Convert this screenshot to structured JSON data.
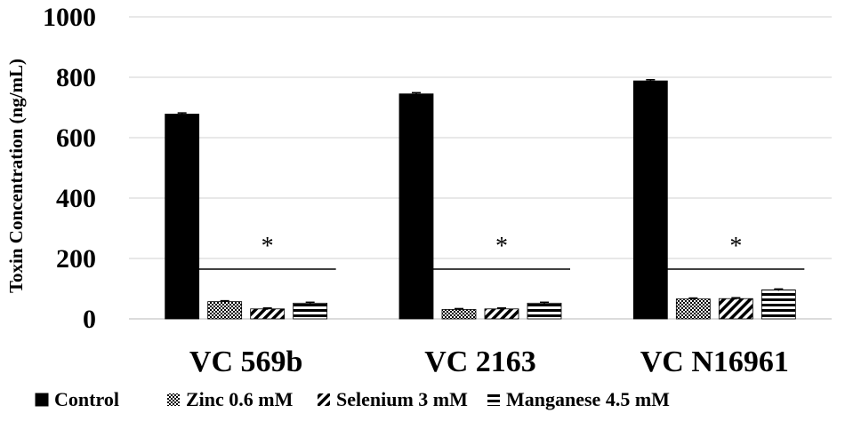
{
  "chart_data": {
    "type": "bar",
    "title": "",
    "ylabel": "Toxin Concentration (ng/mL)",
    "xlabel": "",
    "ylim": [
      0,
      1000
    ],
    "yticks": [
      "0",
      "200",
      "400",
      "600",
      "800",
      "1000"
    ],
    "categories": [
      "VC 569b",
      "VC 2163",
      "VC N16961"
    ],
    "series": [
      {
        "name": "Control",
        "values": [
          678,
          745,
          788
        ],
        "errors": [
          4,
          4,
          4
        ],
        "pattern": "solid"
      },
      {
        "name": "Zinc 0.6 mM",
        "values": [
          57,
          31,
          66
        ],
        "errors": [
          3,
          3,
          3
        ],
        "pattern": "crosshatch"
      },
      {
        "name": "Selenium 3 mM",
        "values": [
          33,
          33,
          67
        ],
        "errors": [
          3,
          3,
          3
        ],
        "pattern": "diagonal"
      },
      {
        "name": "Manganese 4.5 mM",
        "values": [
          52,
          52,
          96
        ],
        "errors": [
          3,
          3,
          3
        ],
        "pattern": "horizontal"
      }
    ],
    "annotations": [
      {
        "category": "VC 569b",
        "text": "*"
      },
      {
        "category": "VC 2163",
        "text": "*"
      },
      {
        "category": "VC N16961",
        "text": "*"
      }
    ],
    "grid": true,
    "legend_position": "bottom"
  }
}
